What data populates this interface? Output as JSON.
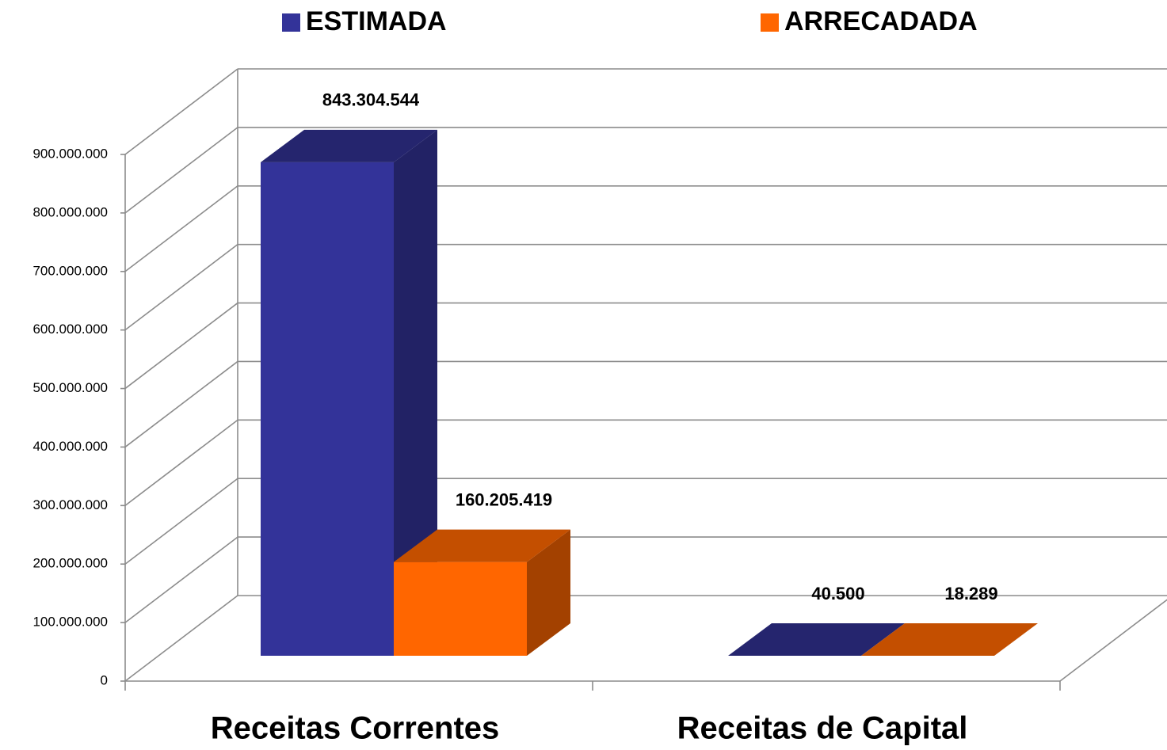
{
  "chart_data": {
    "type": "bar3d",
    "categories": [
      "Receitas Correntes",
      "Receitas de Capital"
    ],
    "series": [
      {
        "name": "ESTIMADA",
        "color": "#333399",
        "values": [
          843304544,
          40500
        ],
        "value_labels": [
          "843.304.544",
          "40.500"
        ]
      },
      {
        "name": "ARRECADADA",
        "color": "#ff6600",
        "values": [
          160205419,
          18289
        ],
        "value_labels": [
          "160.205.419",
          "18.289"
        ]
      }
    ],
    "ylim": [
      0,
      900000000
    ],
    "yticks": [
      0,
      {
        "value": 100000000,
        "label": "100.000.000"
      },
      {
        "value": 200000000,
        "label": "200.000.000"
      },
      {
        "value": 300000000,
        "label": "300.000.000"
      },
      {
        "value": 400000000,
        "label": "400.000.000"
      },
      {
        "value": 500000000,
        "label": "500.000.000"
      },
      {
        "value": 600000000,
        "label": "600.000.000"
      },
      {
        "value": 700000000,
        "label": "700.000.000"
      },
      {
        "value": 800000000,
        "label": "800.000.000"
      },
      {
        "value": 900000000,
        "label": "900.000.000"
      }
    ],
    "grid": true,
    "legend": "top"
  }
}
